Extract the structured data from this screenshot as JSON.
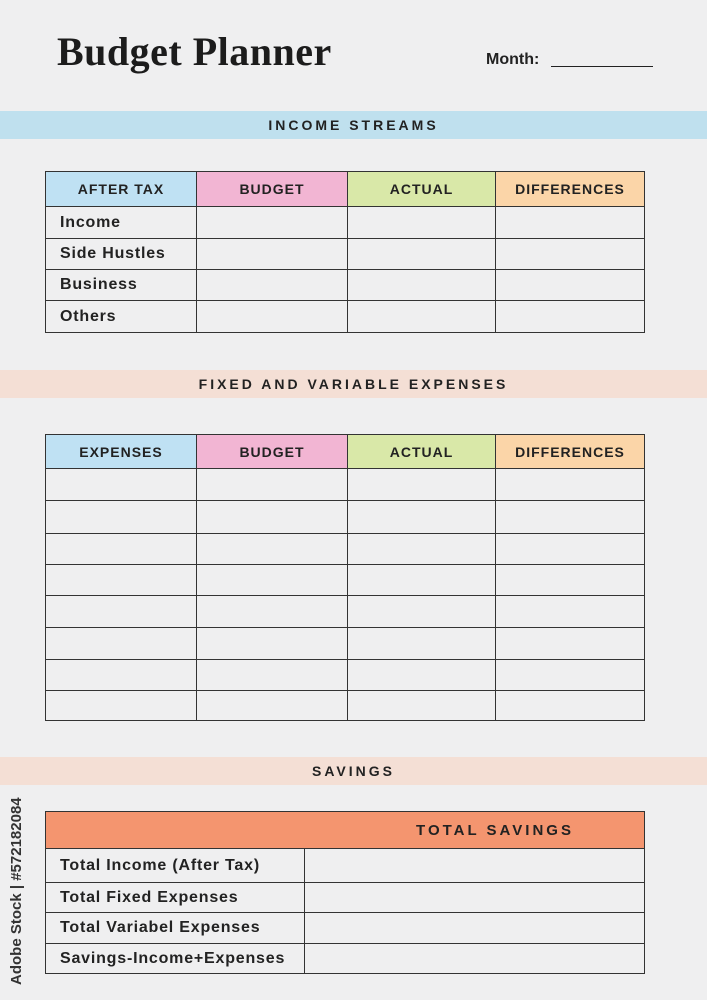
{
  "header": {
    "title": "Budget Planner",
    "month_label": "Month:"
  },
  "income": {
    "band": "INCOME STREAMS",
    "columns": [
      "AFTER TAX",
      "BUDGET",
      "ACTUAL",
      "DIFFERENCES"
    ],
    "rows": [
      "Income",
      "Side Hustles",
      "Business",
      "Others"
    ]
  },
  "expenses": {
    "band": "FIXED AND VARIABLE EXPENSES",
    "columns": [
      "EXPENSES",
      "BUDGET",
      "ACTUAL",
      "DIFFERENCES"
    ]
  },
  "savings": {
    "band": "SAVINGS",
    "table_title": "TOTAL SAVINGS",
    "rows": [
      "Total Income (After Tax)",
      "Total Fixed Expenses",
      "Total Variabel Expenses",
      "Savings-Income+Expenses"
    ]
  },
  "watermark": {
    "side_text": "Adobe Stock | #572182084"
  }
}
